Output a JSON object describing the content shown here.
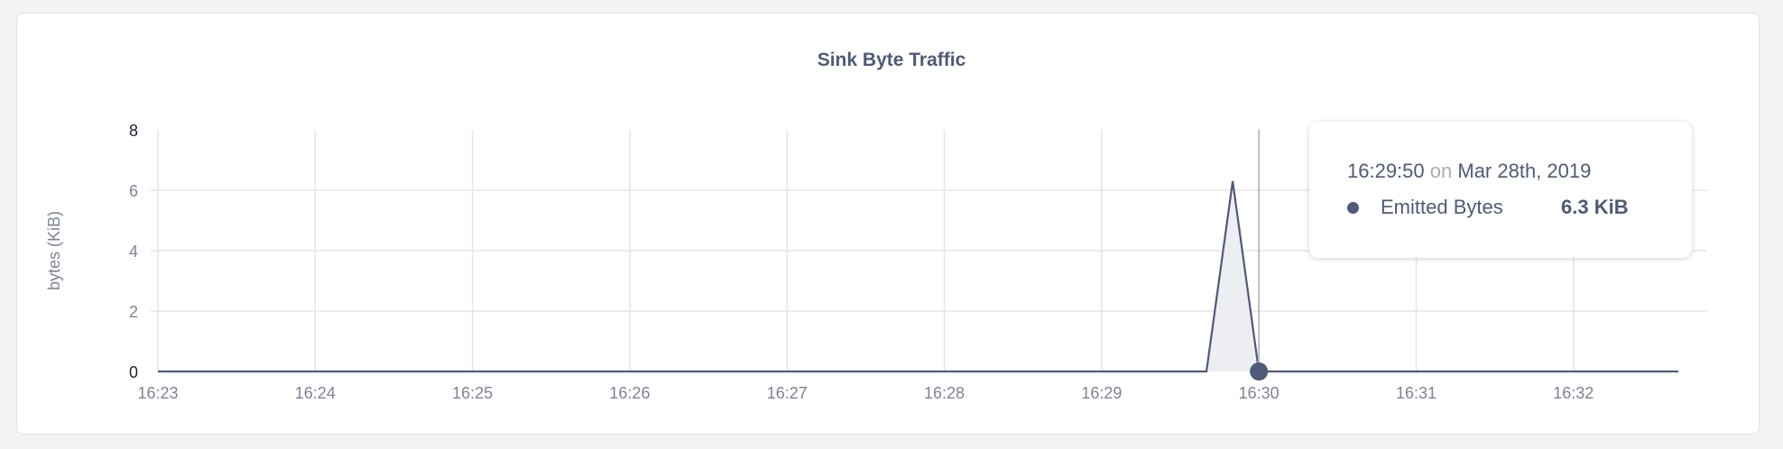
{
  "chart_data": {
    "type": "area",
    "title": "Sink Byte Traffic",
    "xlabel": "",
    "ylabel": "bytes (KiB)",
    "x_ticks": [
      "16:23",
      "16:24",
      "16:25",
      "16:26",
      "16:27",
      "16:28",
      "16:29",
      "16:30",
      "16:31",
      "16:32"
    ],
    "y_ticks": [
      "0",
      "2",
      "4",
      "6",
      "8"
    ],
    "ylim": [
      0,
      8
    ],
    "xlim": [
      "16:23:00",
      "16:32:40"
    ],
    "grid": true,
    "series": [
      {
        "name": "Emitted Bytes",
        "color": "#4f5a78",
        "fill": "#eceef2",
        "x": [
          "16:23:00",
          "16:29:40",
          "16:29:50",
          "16:30:00",
          "16:32:40"
        ],
        "y": [
          0,
          0,
          6.3,
          0,
          0
        ]
      }
    ],
    "tooltip": {
      "time": "16:29:50",
      "on": "on",
      "date": "Mar 28th, 2019",
      "series": "Emitted Bytes",
      "value": "6.3 KiB",
      "hover_x": "16:30:00"
    }
  }
}
